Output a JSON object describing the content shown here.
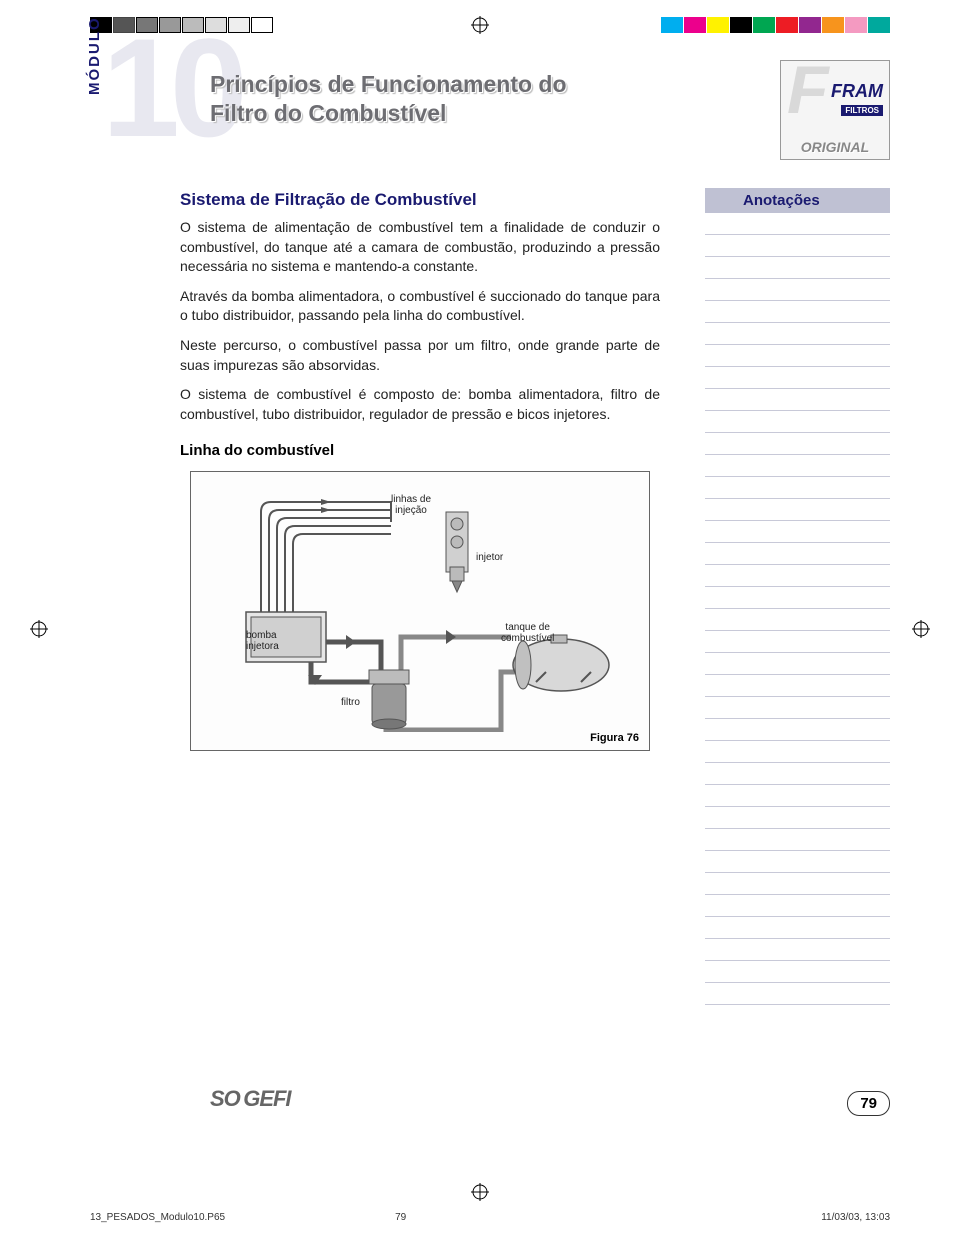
{
  "module": {
    "label": "MÓDULO",
    "number": "10"
  },
  "title": {
    "line1": "Princípios de Funcionamento do",
    "line2": "Filtro do Combustível"
  },
  "brand": {
    "name": "FRAM",
    "sub": "FILTROS",
    "tag": "ORIGINAL"
  },
  "section": {
    "heading": "Sistema de Filtração de Combustível",
    "p1": "O sistema de alimentação de combustível tem a finalidade de conduzir o combustível, do tanque até a camara de combustão, produzindo a pressão necessária no sistema e mantendo-a constante.",
    "p2": "Através da bomba alimentadora, o combustível é succionado do tanque para o tubo distribuidor, passando pela linha do combustível.",
    "p3": "Neste percurso, o combustível passa por um filtro, onde grande parte de suas impurezas são absorvidas.",
    "p4": "O sistema de combustível é composto de: bomba alimentadora, filtro de combustível, tubo distribuidor, regulador de pressão e bicos injetores.",
    "subheading": "Linha do combustível"
  },
  "diagram": {
    "labels": {
      "linhas": "linhas de\ninjeção",
      "injetor": "injetor",
      "bomba": "bomba\ninjetora",
      "filtro": "filtro",
      "tanque": "tanque de\ncombustível"
    },
    "caption": "Figura 76",
    "colors": {
      "stroke": "#555555",
      "fill_light": "#e6e6e6",
      "fill_med": "#bcbcbc",
      "fill_dark": "#888888"
    }
  },
  "annotations": {
    "header": "Anotações",
    "line_count": 36,
    "header_bg": "#bfc1d3",
    "header_fg": "#1a1a70"
  },
  "footer": {
    "logo": "SOGEFI",
    "page": "79"
  },
  "print": {
    "file": "13_PESADOS_Modulo10.P65",
    "page": "79",
    "datetime": "11/03/03, 13:03"
  },
  "registration": {
    "colors": [
      "#00aeef",
      "#ec008c",
      "#fff200",
      "#000000",
      "#00a651",
      "#ed1c24",
      "#92278f",
      "#f7941d",
      "#f49ac1",
      "#00a99d"
    ]
  }
}
